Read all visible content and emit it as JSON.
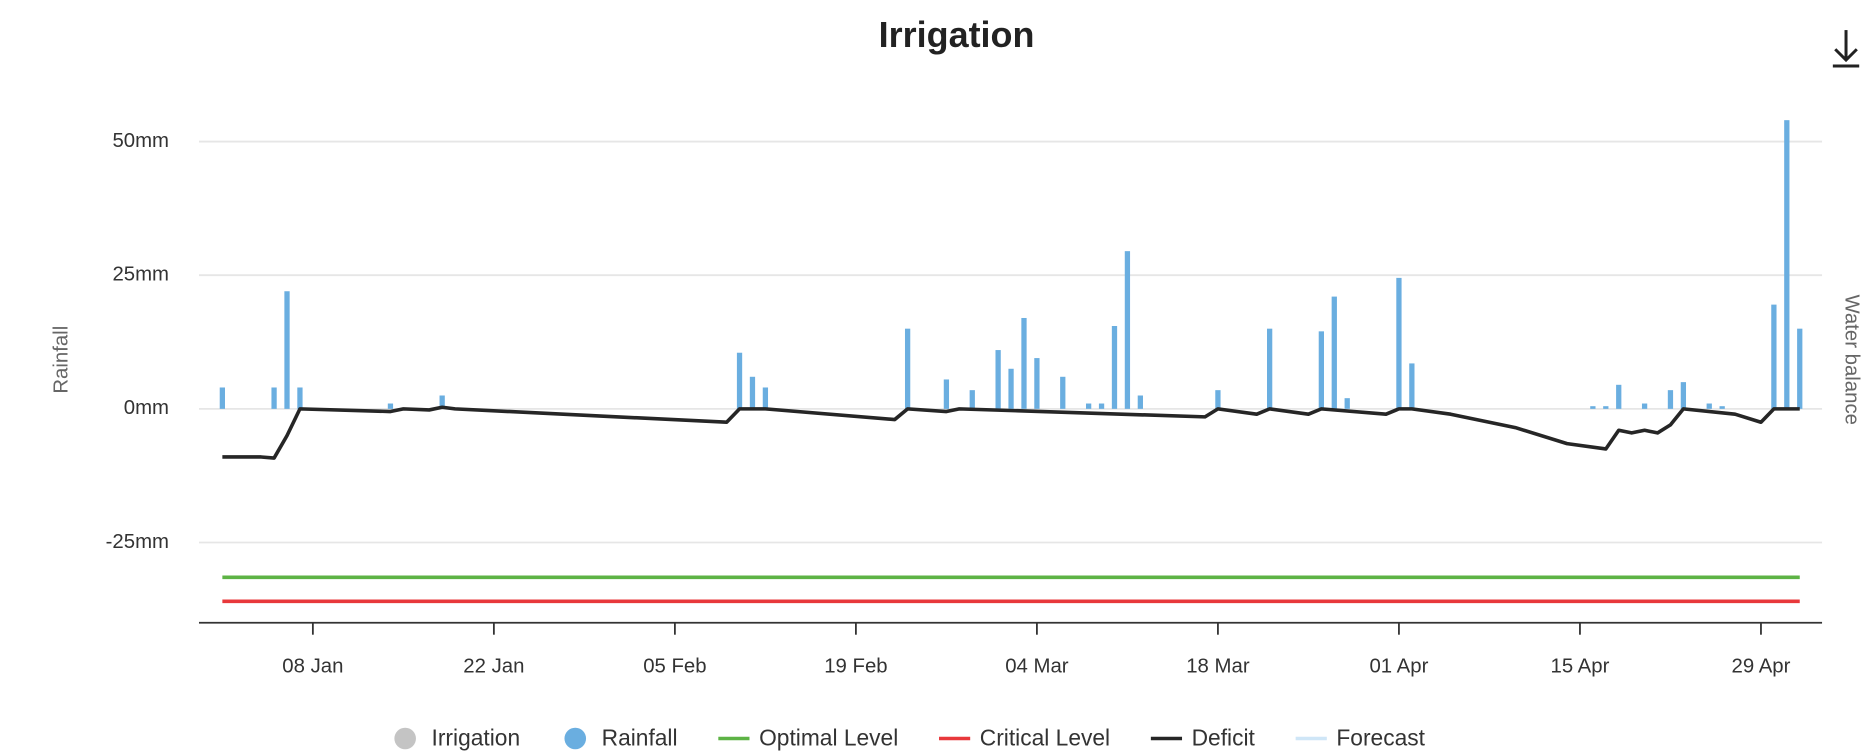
{
  "chart_data": {
    "type": "bar",
    "title": "Irrigation",
    "ylabel": "Rainfall",
    "y2label": "Water balance",
    "ylim": [
      -40,
      58
    ],
    "yticks": [
      {
        "value": -25,
        "label": "-25mm"
      },
      {
        "value": 0,
        "label": "0mm"
      },
      {
        "value": 25,
        "label": "25mm"
      },
      {
        "value": 50,
        "label": "50mm"
      }
    ],
    "xticks": [
      "08 Jan",
      "22 Jan",
      "05 Feb",
      "19 Feb",
      "04 Mar",
      "18 Mar",
      "01 Apr",
      "15 Apr",
      "29 Apr"
    ],
    "grid": true,
    "legend": "bottom",
    "series": [
      {
        "name": "Irrigation",
        "type": "scatter",
        "color": "#c4c4c4",
        "x": [],
        "values": []
      },
      {
        "name": "Rainfall",
        "type": "bar",
        "color": "#6aaee0",
        "x": [
          "01 Jan",
          "05 Jan",
          "06 Jan",
          "07 Jan",
          "14 Jan",
          "18 Jan",
          "10 Feb",
          "11 Feb",
          "12 Feb",
          "23 Feb",
          "26 Feb",
          "28 Feb",
          "01 Mar",
          "02 Mar",
          "03 Mar",
          "04 Mar",
          "06 Mar",
          "08 Mar",
          "09 Mar",
          "10 Mar",
          "11 Mar",
          "12 Mar",
          "18 Mar",
          "22 Mar",
          "26 Mar",
          "27 Mar",
          "28 Mar",
          "01 Apr",
          "02 Apr",
          "16 Apr",
          "17 Apr",
          "18 Apr",
          "20 Apr",
          "22 Apr",
          "23 Apr",
          "25 Apr",
          "26 Apr",
          "30 Apr",
          "01 May",
          "02 May"
        ],
        "values": [
          4,
          4,
          22,
          4,
          1,
          2.5,
          10.5,
          6,
          4,
          15,
          5.5,
          3.5,
          11,
          7.5,
          17,
          9.5,
          6,
          1,
          1,
          15.5,
          29.5,
          2.5,
          3.5,
          15,
          14.5,
          21,
          2,
          24.5,
          8.5,
          0.5,
          0.5,
          4.5,
          1,
          3.5,
          5,
          1,
          0.5,
          19.5,
          54,
          15
        ]
      },
      {
        "name": "Optimal Level",
        "type": "line",
        "color": "#5db345",
        "x": [
          "01 Jan",
          "02 May"
        ],
        "values": [
          -31.5,
          -31.5
        ]
      },
      {
        "name": "Critical Level",
        "type": "line",
        "color": "#e8383b",
        "x": [
          "01 Jan",
          "02 May"
        ],
        "values": [
          -36,
          -36
        ]
      },
      {
        "name": "Deficit",
        "type": "line",
        "color": "#262626",
        "x": [
          "01 Jan",
          "04 Jan",
          "05 Jan",
          "06 Jan",
          "07 Jan",
          "14 Jan",
          "15 Jan",
          "17 Jan",
          "18 Jan",
          "19 Jan",
          "09 Feb",
          "10 Feb",
          "12 Feb",
          "22 Feb",
          "23 Feb",
          "26 Feb",
          "27 Feb",
          "17 Mar",
          "18 Mar",
          "21 Mar",
          "22 Mar",
          "25 Mar",
          "26 Mar",
          "31 Mar",
          "01 Apr",
          "02 Apr",
          "05 Apr",
          "10 Apr",
          "14 Apr",
          "17 Apr",
          "18 Apr",
          "19 Apr",
          "20 Apr",
          "21 Apr",
          "22 Apr",
          "23 Apr",
          "27 Apr",
          "29 Apr",
          "30 Apr",
          "02 May"
        ],
        "values": [
          -9,
          -9,
          -9.2,
          -5,
          0,
          -0.5,
          0,
          -0.2,
          0.3,
          0,
          -2.5,
          0,
          0,
          -2,
          0,
          -0.5,
          0,
          -1.5,
          0,
          -1,
          0,
          -1,
          0,
          -1,
          0,
          0,
          -1,
          -3.5,
          -6.5,
          -7.5,
          -4,
          -4.5,
          -4,
          -4.5,
          -3,
          0,
          -1,
          -2.5,
          0,
          0
        ]
      },
      {
        "name": "Forecast",
        "type": "line",
        "color": "#cfe6f7",
        "x": [],
        "values": []
      }
    ]
  }
}
